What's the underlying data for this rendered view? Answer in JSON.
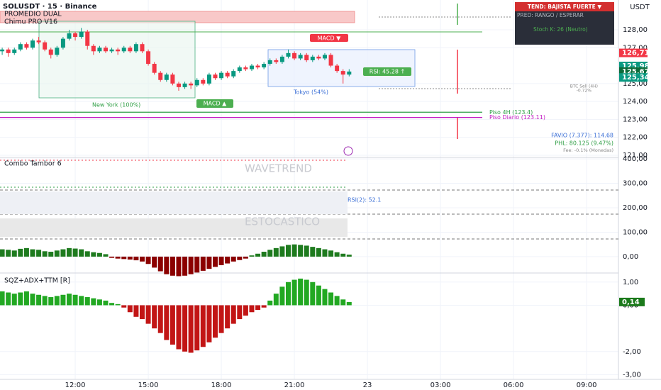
{
  "chart_data": [
    {
      "type": "candlestick",
      "title": "SOLUSDT · 15 · Binance",
      "x": [
        9,
        9.25,
        9.5,
        9.75,
        10,
        10.25,
        10.5,
        10.75,
        11,
        11.25,
        11.5,
        11.75,
        12,
        12.25,
        12.5,
        12.75,
        13,
        13.25,
        13.5,
        13.75,
        14,
        14.25,
        14.5,
        14.75,
        15,
        15.25,
        15.5,
        15.75,
        16,
        16.25,
        16.5,
        16.75,
        17,
        17.25,
        17.5,
        17.75,
        18,
        18.25,
        18.5,
        18.75,
        19,
        19.25,
        19.5,
        19.75,
        20,
        20.25,
        20.5,
        20.75,
        21,
        21.25,
        21.5,
        21.75,
        22,
        22.25,
        22.5,
        22.75,
        23,
        23.25
      ],
      "open": [
        126.8,
        126.9,
        126.7,
        126.9,
        127.2,
        127.0,
        127.4,
        127.3,
        126.9,
        126.6,
        127.0,
        127.5,
        127.8,
        127.6,
        127.9,
        127.1,
        126.8,
        127.0,
        126.8,
        126.9,
        126.8,
        127.0,
        126.8,
        127.2,
        126.8,
        126.1,
        125.6,
        125.2,
        125.5,
        125.0,
        124.8,
        125.0,
        124.9,
        125.2,
        125.0,
        125.5,
        125.3,
        125.6,
        125.4,
        125.7,
        125.9,
        125.8,
        126.0,
        125.9,
        126.1,
        126.3,
        126.2,
        126.5,
        126.7,
        126.4,
        126.6,
        126.3,
        126.5,
        126.4,
        126.6,
        126.0,
        125.7,
        125.5
      ],
      "high": [
        127.0,
        127.0,
        127.0,
        127.3,
        127.3,
        127.5,
        127.6,
        127.4,
        127.0,
        127.1,
        127.6,
        128.0,
        127.9,
        128.1,
        128.0,
        127.2,
        127.1,
        127.1,
        127.0,
        127.0,
        127.1,
        127.1,
        127.3,
        127.3,
        126.9,
        126.2,
        125.7,
        125.6,
        125.6,
        125.1,
        125.1,
        125.1,
        125.3,
        125.3,
        125.6,
        125.6,
        125.7,
        125.7,
        125.8,
        126.0,
        126.0,
        126.1,
        126.1,
        126.2,
        126.4,
        126.4,
        126.6,
        126.9,
        126.8,
        126.7,
        126.7,
        126.6,
        126.6,
        126.7,
        126.7,
        126.1,
        125.8,
        125.8
      ],
      "low": [
        126.6,
        126.5,
        126.6,
        126.8,
        126.9,
        126.9,
        127.2,
        126.8,
        126.4,
        126.5,
        126.9,
        127.4,
        127.4,
        127.5,
        126.9,
        126.6,
        126.7,
        126.7,
        126.7,
        126.6,
        126.7,
        126.7,
        126.7,
        126.7,
        126.0,
        125.5,
        125.1,
        125.1,
        124.9,
        124.6,
        124.7,
        124.7,
        124.8,
        124.9,
        124.9,
        125.2,
        125.2,
        125.3,
        125.3,
        125.6,
        125.7,
        125.7,
        125.8,
        125.8,
        126.0,
        126.1,
        126.1,
        126.4,
        126.3,
        126.3,
        126.2,
        126.2,
        126.3,
        126.3,
        125.9,
        125.6,
        125.0,
        125.4
      ],
      "close": [
        126.9,
        126.7,
        126.9,
        127.2,
        127.0,
        127.4,
        127.3,
        126.9,
        126.6,
        127.0,
        127.5,
        127.8,
        127.6,
        127.9,
        127.1,
        126.8,
        127.0,
        126.8,
        126.9,
        126.8,
        127.0,
        126.8,
        127.2,
        126.8,
        126.1,
        125.6,
        125.2,
        125.5,
        125.0,
        124.8,
        125.0,
        124.9,
        125.2,
        125.0,
        125.5,
        125.3,
        125.6,
        125.4,
        125.7,
        125.9,
        125.8,
        126.0,
        125.9,
        126.1,
        126.3,
        126.2,
        126.5,
        126.7,
        126.4,
        126.6,
        126.3,
        126.5,
        126.4,
        126.6,
        126.0,
        125.7,
        125.5,
        125.67
      ],
      "up_color": "#089981",
      "down_color": "#f23645",
      "xlim": [
        8.91,
        34.31
      ],
      "xticks": [
        {
          "value": 12,
          "label": "12:00"
        },
        {
          "value": 15,
          "label": "15:00"
        },
        {
          "value": 18,
          "label": "18:00"
        },
        {
          "value": 21,
          "label": "21:00"
        },
        {
          "value": 24,
          "label": "23"
        },
        {
          "value": 27,
          "label": "03:00"
        },
        {
          "value": 30,
          "label": "06:00"
        },
        {
          "value": 33,
          "label": "09:00"
        }
      ],
      "ylim": [
        120.88,
        129.66
      ],
      "yticks": [
        {
          "value": 128,
          "label": "128,00"
        },
        {
          "value": 127,
          "label": "127,00"
        },
        {
          "value": 125,
          "label": "125,00"
        },
        {
          "value": 124,
          "label": "124,00"
        },
        {
          "value": 123,
          "label": "123,00"
        },
        {
          "value": 122,
          "label": "122,00"
        },
        {
          "value": 121,
          "label": "121,00"
        }
      ],
      "grid": true,
      "price_labels": [
        {
          "value": 126.71,
          "label": "126,71",
          "color": "#f23645"
        },
        {
          "value": 125.98,
          "label": "125,98",
          "color": "#089981"
        },
        {
          "value": 125.67,
          "label": "125,67",
          "color": "#0b6b3a"
        },
        {
          "value": 125.34,
          "label": "125,34",
          "color": "#089981"
        }
      ],
      "levels": [
        {
          "value": 123.4,
          "label": "Piso 4H (123.4)",
          "color": "#2e9e44"
        },
        {
          "value": 123.11,
          "label": "Piso Diario (123.11)",
          "color": "#c218c2"
        }
      ],
      "labels": {
        "currency": "USDT",
        "indicator1": "PROMEDIO DUAL",
        "indicator2": "Chimu PRO V16",
        "new_york": "New York (100%)",
        "tokyo": "Tokyo (54%)",
        "macd_down": "MACD ▼",
        "macd_up": "MACD ▲",
        "rsi": "RSI: 45.28 ↑",
        "favio": "FAVIO (7.377): 114.68",
        "phl": "PHL: 80.125 (9.47%)",
        "fee": "Fee: -0.1% (Monedas)",
        "btc_sell": "BTC Sell (4H)",
        "btc_change": "-0.72%",
        "trend": "TEND: BAJISTA FUERTE ▼",
        "prediction": "PRED: RANGO / ESPERAR",
        "stoch": "Stoch K: 26 (Neutro)"
      }
    },
    {
      "type": "bar",
      "title": "Combo Tambor 6",
      "values": [
        30,
        28,
        25,
        32,
        35,
        30,
        28,
        22,
        20,
        25,
        30,
        35,
        33,
        30,
        22,
        18,
        15,
        10,
        -5,
        -8,
        -10,
        -12,
        -15,
        -20,
        -30,
        -45,
        -60,
        -72,
        -78,
        -80,
        -78,
        -72,
        -65,
        -58,
        -50,
        -42,
        -35,
        -28,
        -20,
        -14,
        -8,
        5,
        12,
        20,
        28,
        35,
        42,
        48,
        50,
        48,
        45,
        40,
        35,
        30,
        25,
        18,
        12,
        8
      ],
      "color_positive": "#1e7b1e",
      "color_negative": "#8b0000",
      "ylim": [
        -67,
        406
      ],
      "yticks": [
        {
          "value": 400,
          "label": "400,00"
        },
        {
          "value": 300,
          "label": "300,00"
        },
        {
          "value": 200,
          "label": "200,00"
        },
        {
          "value": 100,
          "label": "100,00"
        },
        {
          "value": 0,
          "label": "0,00"
        }
      ],
      "labels": {
        "wavetrend": "WAVETREND",
        "rsi2": "RSI(2): 52.1",
        "stochastic": "ESTOCASTICO"
      }
    },
    {
      "type": "bar",
      "title": "SQZ+ADX+TTM [R]",
      "values": [
        0.6,
        0.55,
        0.5,
        0.55,
        0.6,
        0.5,
        0.45,
        0.4,
        0.35,
        0.4,
        0.45,
        0.5,
        0.45,
        0.4,
        0.35,
        0.3,
        0.25,
        0.2,
        0.1,
        0.05,
        -0.1,
        -0.3,
        -0.5,
        -0.6,
        -0.8,
        -1.0,
        -1.2,
        -1.5,
        -1.7,
        -1.9,
        -2.0,
        -2.05,
        -1.95,
        -1.8,
        -1.6,
        -1.4,
        -1.2,
        -1.0,
        -0.8,
        -0.6,
        -0.45,
        -0.3,
        -0.2,
        -0.1,
        0.2,
        0.5,
        0.8,
        1.0,
        1.1,
        1.15,
        1.1,
        1.0,
        0.85,
        0.7,
        0.55,
        0.4,
        0.25,
        0.14
      ],
      "color_positive": "#22a822",
      "color_negative": "#c21515",
      "ylim": [
        -3.2,
        1.3
      ],
      "yticks": [
        {
          "value": 1,
          "label": "1,00"
        },
        {
          "value": 0,
          "label": "0,00"
        },
        {
          "value": -2,
          "label": "-2,00"
        },
        {
          "value": -3,
          "label": "-3,00"
        }
      ],
      "last_label": {
        "value": 0.14,
        "label": "0,14",
        "color": "#1b7a1b"
      }
    }
  ]
}
